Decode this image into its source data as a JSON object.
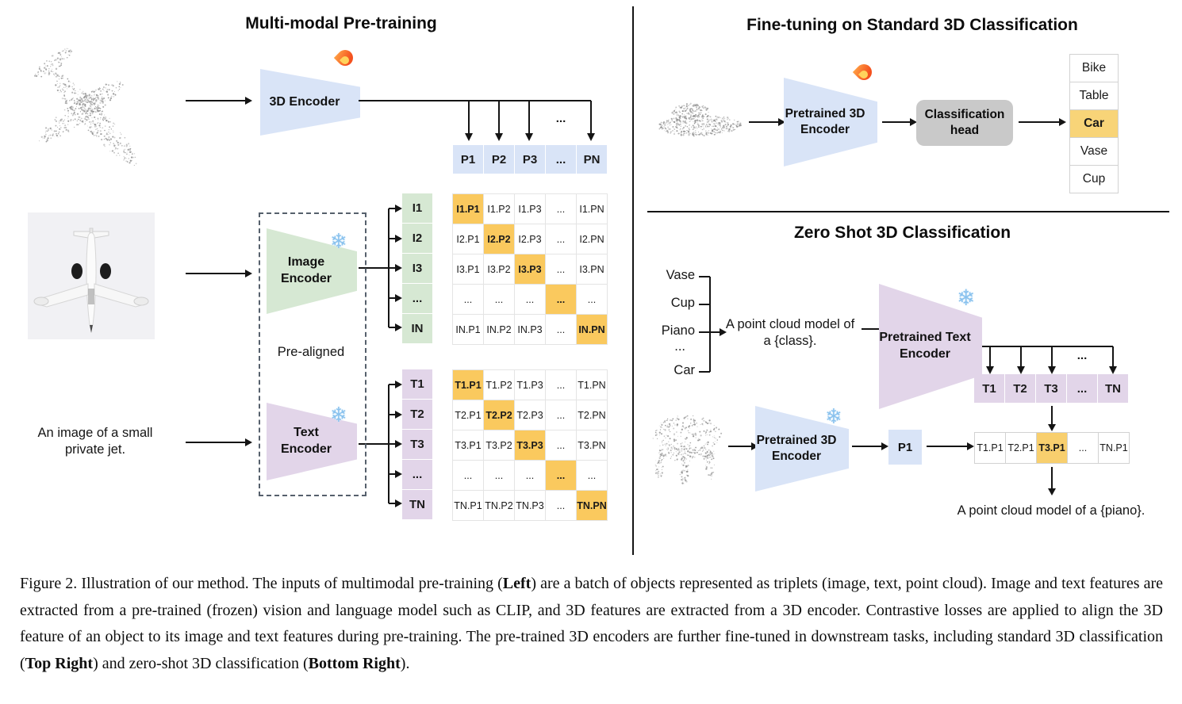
{
  "icons": {
    "snowflake": "❄"
  },
  "colors": {
    "encoder_blue": "#d9e4f7",
    "encoder_green": "#d6e8d3",
    "encoder_purple": "#e2d5e9",
    "matrix_highlight_orange": "#fac95e",
    "class_highlight_orange": "#f8d478",
    "classification_head_gray": "#c9c9c9"
  },
  "pretraining": {
    "title": "Multi-modal Pre-training",
    "encoder_3d_label": "3D Encoder",
    "image_encoder": {
      "line1": "Image",
      "line2": "Encoder"
    },
    "text_encoder": {
      "line1": "Text",
      "line2": "Encoder"
    },
    "prealigned_label": "Pre-aligned",
    "input_caption": {
      "line1": "An image of a small",
      "line2": "private jet."
    },
    "ellipsis": "...",
    "p_row": {
      "cells": [
        "P1",
        "P2",
        "P3",
        "...",
        "PN"
      ]
    },
    "i_labels": {
      "cells": [
        "I1",
        "I2",
        "I3",
        "...",
        "IN"
      ]
    },
    "t_labels": {
      "cells": [
        "T1",
        "T2",
        "T3",
        "...",
        "TN"
      ]
    },
    "i_matrix": {
      "highlight": "diagonal",
      "cells": [
        [
          "I1.P1",
          "I1.P2",
          "I1.P3",
          "...",
          "I1.PN"
        ],
        [
          "I2.P1",
          "I2.P2",
          "I2.P3",
          "...",
          "I2.PN"
        ],
        [
          "I3.P1",
          "I3.P2",
          "I3.P3",
          "...",
          "I3.PN"
        ],
        [
          "...",
          "...",
          "...",
          "...",
          "..."
        ],
        [
          "IN.P1",
          "IN.P2",
          "IN.P3",
          "...",
          "IN.PN"
        ]
      ]
    },
    "t_matrix": {
      "highlight": "diagonal",
      "cells": [
        [
          "T1.P1",
          "T1.P2",
          "T1.P3",
          "...",
          "T1.PN"
        ],
        [
          "T2.P1",
          "T2.P2",
          "T2.P3",
          "...",
          "T2.PN"
        ],
        [
          "T3.P1",
          "T3.P2",
          "T3.P3",
          "...",
          "T3.PN"
        ],
        [
          "...",
          "...",
          "...",
          "...",
          "..."
        ],
        [
          "TN.P1",
          "TN.P2",
          "TN.P3",
          "...",
          "TN.PN"
        ]
      ]
    }
  },
  "finetune": {
    "title": "Fine-tuning on Standard 3D Classification",
    "encoder": {
      "line1": "Pretrained 3D",
      "line2": "Encoder"
    },
    "head": {
      "line1": "Classification",
      "line2": "head"
    },
    "classes": {
      "highlight": [
        2
      ],
      "cells": [
        "Bike",
        "Table",
        "Car",
        "Vase",
        "Cup"
      ]
    }
  },
  "zeroshot": {
    "title": "Zero Shot 3D Classification",
    "class_list": [
      "Vase",
      "Cup",
      "Piano",
      "...",
      "Car"
    ],
    "prompt": {
      "line1": "A point cloud model of",
      "line2": "a {class}."
    },
    "text_encoder": {
      "line1": "Pretrained Text",
      "line2": "Encoder"
    },
    "encoder_3d": {
      "line1": "Pretrained 3D",
      "line2": "Encoder"
    },
    "p1_label": "P1",
    "ellipsis": "...",
    "t_row": {
      "cells": [
        "T1",
        "T2",
        "T3",
        "...",
        "TN"
      ]
    },
    "tp_row": {
      "highlight": [
        2
      ],
      "cells": [
        "T1.P1",
        "T2.P1",
        "T3.P1",
        "...",
        "TN.P1"
      ]
    },
    "result_text": "A point cloud model of a {piano}."
  },
  "caption": {
    "figure_label": "Figure 2.",
    "segments": [
      {
        "text": "Figure 2. Illustration of our method.  The inputs of multimodal pre-training (",
        "bold": false
      },
      {
        "text": "Left",
        "bold": true
      },
      {
        "text": ") are a batch of objects represented as triplets (image, text, point cloud).  Image and text features are extracted from a pre-trained (frozen) vision and language model such as CLIP, and 3D features are extracted from a 3D encoder.  Contrastive losses are applied to align the 3D feature of an object to its image and text features during pre-training.  The pre-trained 3D encoders are further fine-tuned in downstream tasks, including standard 3D classification (",
        "bold": false
      },
      {
        "text": "Top Right",
        "bold": true
      },
      {
        "text": ") and zero-shot 3D classification (",
        "bold": false
      },
      {
        "text": "Bottom Right",
        "bold": true
      },
      {
        "text": ").",
        "bold": false
      }
    ]
  }
}
